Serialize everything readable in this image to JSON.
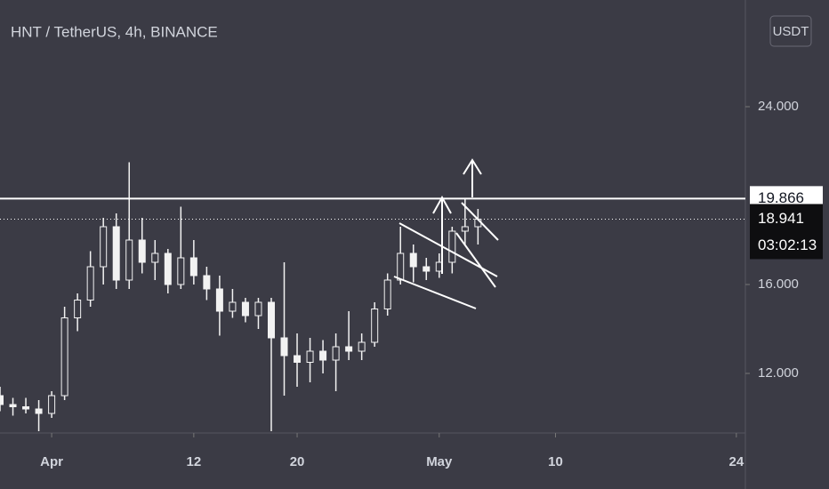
{
  "chart_data": {
    "type": "candlestick",
    "title": "HNT / TetherUS, 4h, BINANCE",
    "currency_button": "USDT",
    "color": "#f2f2f2",
    "xlim": [
      -4,
      53.7
    ],
    "xticks": [
      {
        "value": 0,
        "label": "Apr"
      },
      {
        "value": 11,
        "label": "12"
      },
      {
        "value": 19,
        "label": "20"
      },
      {
        "value": 30,
        "label": "May"
      },
      {
        "value": 39,
        "label": "10"
      },
      {
        "value": 53,
        "label": "24"
      }
    ],
    "ylim": [
      9.32,
      28.8
    ],
    "yticks": [
      {
        "value": 12,
        "label": "12.000"
      },
      {
        "value": 16,
        "label": "16.000"
      },
      {
        "value": 24,
        "label": "24.000"
      }
    ],
    "x": [
      -4,
      -3,
      -2,
      -1,
      0,
      1,
      2,
      3,
      4,
      5,
      6,
      7,
      8,
      9,
      10,
      11,
      12,
      13,
      14,
      15,
      16,
      17,
      18,
      19,
      20,
      21,
      22,
      23,
      24,
      25,
      26,
      27,
      28,
      29,
      30,
      31,
      32,
      33
    ],
    "open": [
      11.0,
      10.6,
      10.5,
      10.4,
      10.2,
      11.0,
      14.5,
      15.3,
      16.8,
      18.6,
      16.2,
      18.0,
      17.0,
      17.4,
      16.0,
      17.2,
      16.4,
      15.8,
      14.8,
      15.2,
      14.6,
      15.2,
      13.6,
      12.8,
      12.5,
      13.0,
      12.6,
      13.2,
      13.0,
      13.4,
      14.9,
      16.2,
      17.4,
      16.8,
      16.6,
      17.0,
      18.4,
      18.6
    ],
    "high": [
      11.4,
      10.9,
      10.9,
      10.8,
      11.2,
      15.0,
      15.6,
      17.5,
      19.0,
      19.2,
      21.5,
      19.0,
      18.0,
      17.6,
      19.5,
      18.0,
      16.8,
      16.4,
      15.8,
      15.4,
      15.4,
      15.4,
      17.0,
      13.8,
      13.6,
      13.5,
      13.8,
      14.8,
      13.8,
      15.2,
      16.5,
      18.6,
      17.8,
      17.2,
      17.4,
      18.6,
      19.9,
      19.4
    ],
    "low": [
      10.3,
      10.1,
      10.2,
      9.4,
      10.0,
      10.8,
      13.9,
      15.0,
      16.0,
      15.8,
      15.8,
      16.5,
      16.2,
      15.6,
      15.8,
      16.0,
      15.3,
      13.7,
      14.5,
      14.3,
      14.0,
      9.4,
      11.0,
      11.4,
      11.6,
      12.0,
      11.2,
      12.6,
      12.6,
      13.2,
      14.6,
      16.0,
      16.1,
      16.2,
      16.3,
      16.5,
      17.8,
      17.8
    ],
    "close": [
      10.6,
      10.5,
      10.4,
      10.2,
      11.0,
      14.5,
      15.3,
      16.8,
      18.6,
      16.2,
      18.0,
      17.0,
      17.4,
      16.0,
      17.2,
      16.4,
      15.8,
      14.8,
      15.2,
      14.6,
      15.2,
      13.6,
      12.8,
      12.5,
      13.0,
      12.6,
      13.2,
      13.0,
      13.4,
      14.9,
      16.2,
      17.4,
      16.8,
      16.6,
      17.0,
      18.4,
      18.6,
      18.941
    ],
    "level_line": 19.866,
    "last_price": 18.941,
    "countdown": "03:02:13"
  }
}
